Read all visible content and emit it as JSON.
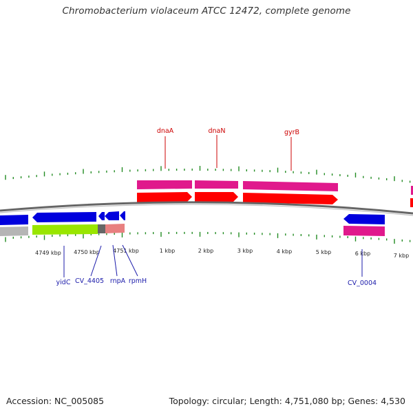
{
  "title": "Chromobacterium violaceum ATCC 12472, complete genome",
  "footer": {
    "accession": "Accession: NC_005085",
    "topology": "Topology: circular; Length: 4,751,080 bp; Genes: 4,530"
  },
  "colors": {
    "forward_cds": "#ff0000",
    "forward_gene": "#e0198c",
    "reverse_cds": "#0000dd",
    "reverse_gene_pink": "#e0198c",
    "rna": "#99e600",
    "other_feature": "#e88080",
    "backbone": "#666666",
    "tick": "#228b22",
    "label_forward": "#cc0000",
    "label_reverse": "#1a1aaa"
  },
  "tick_labels": [
    {
      "id": "t4749",
      "text": "4749 kbp"
    },
    {
      "id": "t4750",
      "text": "4750 kbp"
    },
    {
      "id": "t4751",
      "text": "4751 kbp"
    },
    {
      "id": "t1",
      "text": "1 kbp"
    },
    {
      "id": "t2",
      "text": "2 kbp"
    },
    {
      "id": "t3",
      "text": "3 kbp"
    },
    {
      "id": "t4",
      "text": "4 kbp"
    },
    {
      "id": "t5",
      "text": "5 kbp"
    },
    {
      "id": "t6",
      "text": "6 kbp"
    },
    {
      "id": "t7",
      "text": "7 kbp"
    }
  ],
  "forward_genes": [
    {
      "id": "dnaA",
      "label": "dnaA"
    },
    {
      "id": "dnaN",
      "label": "dnaN"
    },
    {
      "id": "gyrB",
      "label": "gyrB"
    }
  ],
  "reverse_genes": [
    {
      "id": "yidC",
      "label": "yidC"
    },
    {
      "id": "CV_4405",
      "label": "CV_4405"
    },
    {
      "id": "rnpA",
      "label": "rnpA"
    },
    {
      "id": "rpmH",
      "label": "rpmH"
    },
    {
      "id": "CV_0004",
      "label": "CV_0004"
    }
  ]
}
